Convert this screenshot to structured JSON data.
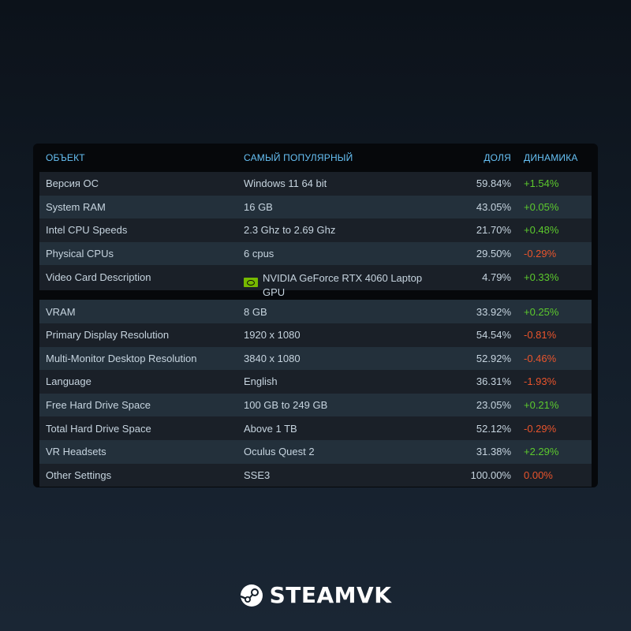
{
  "table": {
    "headers": {
      "object": "ОБЪЕКТ",
      "popular": "САМЫЙ ПОПУЛЯРНЫЙ",
      "share": "ДОЛЯ",
      "change": "ДИНАМИКА"
    },
    "rows": [
      {
        "object": "Версия ОС",
        "popular": "Windows 11 64 bit",
        "share": "59.84%",
        "change": "+1.54%",
        "trend": "pos"
      },
      {
        "object": "System RAM",
        "popular": "16 GB",
        "share": "43.05%",
        "change": "+0.05%",
        "trend": "pos"
      },
      {
        "object": "Intel CPU Speeds",
        "popular": "2.3 Ghz to 2.69 Ghz",
        "share": "21.70%",
        "change": "+0.48%",
        "trend": "pos"
      },
      {
        "object": "Physical CPUs",
        "popular": "6 cpus",
        "share": "29.50%",
        "change": "-0.29%",
        "trend": "neg"
      },
      {
        "object": "Video Card Description",
        "popular": "NVIDIA GeForce RTX 4060 Laptop GPU",
        "share": "4.79%",
        "change": "+0.33%",
        "trend": "pos",
        "icon": "nvidia-icon"
      },
      {
        "object": "VRAM",
        "popular": "8 GB",
        "share": "33.92%",
        "change": "+0.25%",
        "trend": "pos"
      },
      {
        "object": "Primary Display Resolution",
        "popular": "1920 x 1080",
        "share": "54.54%",
        "change": "-0.81%",
        "trend": "neg"
      },
      {
        "object": "Multi-Monitor Desktop Resolution",
        "popular": "3840 x 1080",
        "share": "52.92%",
        "change": "-0.46%",
        "trend": "neg"
      },
      {
        "object": "Language",
        "popular": "English",
        "share": "36.31%",
        "change": "-1.93%",
        "trend": "neg"
      },
      {
        "object": "Free Hard Drive Space",
        "popular": "100 GB to 249 GB",
        "share": "23.05%",
        "change": "+0.21%",
        "trend": "pos"
      },
      {
        "object": "Total Hard Drive Space",
        "popular": "Above 1 TB",
        "share": "52.12%",
        "change": "-0.29%",
        "trend": "neg"
      },
      {
        "object": "VR Headsets",
        "popular": "Oculus Quest 2",
        "share": "31.38%",
        "change": "+2.29%",
        "trend": "pos"
      },
      {
        "object": "Other Settings",
        "popular": "SSE3",
        "share": "100.00%",
        "change": "0.00%",
        "trend": "neg"
      }
    ]
  },
  "colors": {
    "header_text": "#66c0f4",
    "positive": "#5cc92d",
    "negative": "#e9542c",
    "row_dark": "#1a2028",
    "row_light": "#23303b"
  },
  "logo": {
    "text": "STEAMVK",
    "icon": "steam-icon"
  }
}
